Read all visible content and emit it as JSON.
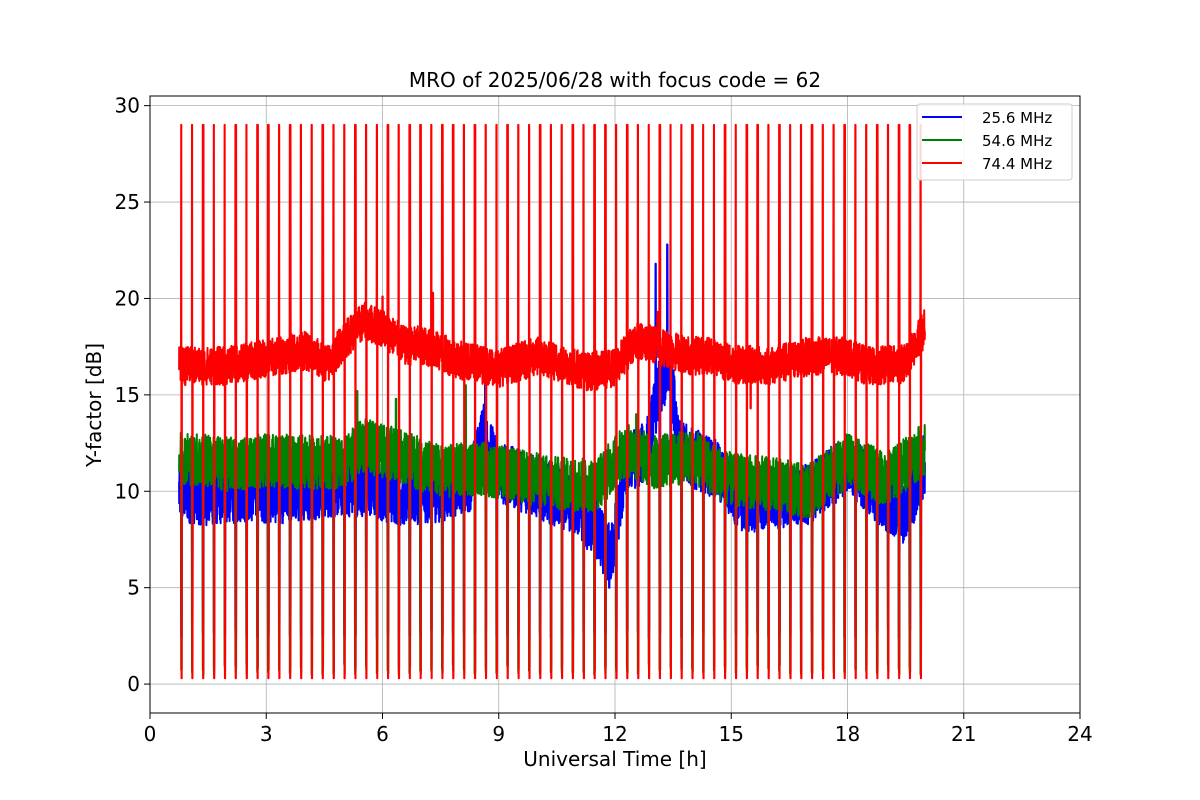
{
  "chart_data": {
    "type": "line",
    "title": "MRO of 2025/06/28 with focus code = 62",
    "xlabel": "Universal Time [h]",
    "ylabel": "Y-factor [dB]",
    "xlim": [
      0,
      24
    ],
    "ylim": [
      -1.5,
      30.5
    ],
    "xticks": [
      0,
      3,
      6,
      9,
      12,
      15,
      18,
      21,
      24
    ],
    "yticks": [
      0,
      5,
      10,
      15,
      20,
      25,
      30
    ],
    "grid": true,
    "legend_position": "top-right",
    "x_start": 0.75,
    "x_end": 20.0,
    "calibration_period_h": 0.2806,
    "series": [
      {
        "name": "25.6 MHz",
        "color": "#0000ff",
        "baseline": [
          [
            0.75,
            10.0
          ],
          [
            1.5,
            9.8
          ],
          [
            2.5,
            10.0
          ],
          [
            3.5,
            9.9
          ],
          [
            4.5,
            10.2
          ],
          [
            5.5,
            10.3
          ],
          [
            6.5,
            9.8
          ],
          [
            7.5,
            10.0
          ],
          [
            8.3,
            10.6
          ],
          [
            8.6,
            13.0
          ],
          [
            9.0,
            11.0
          ],
          [
            10.0,
            10.2
          ],
          [
            11.0,
            9.3
          ],
          [
            11.5,
            8.0
          ],
          [
            11.9,
            6.6
          ],
          [
            12.3,
            11.5
          ],
          [
            12.8,
            12.0
          ],
          [
            13.1,
            15.0
          ],
          [
            13.4,
            16.5
          ],
          [
            13.7,
            12.0
          ],
          [
            14.5,
            11.3
          ],
          [
            15.3,
            9.4
          ],
          [
            16.3,
            9.7
          ],
          [
            17.0,
            9.8
          ],
          [
            18.0,
            11.5
          ],
          [
            19.0,
            9.5
          ],
          [
            19.5,
            8.8
          ],
          [
            20.0,
            11.5
          ]
        ],
        "noise": 1.6,
        "spikes": [
          [
            8.65,
            16.0
          ],
          [
            13.05,
            21.8
          ],
          [
            13.35,
            22.8
          ],
          [
            11.85,
            5.0
          ]
        ],
        "cal_low": 2.3
      },
      {
        "name": "54.6 MHz",
        "color": "#008000",
        "baseline": [
          [
            0.75,
            11.8
          ],
          [
            2.0,
            11.4
          ],
          [
            3.0,
            11.6
          ],
          [
            4.0,
            11.5
          ],
          [
            5.0,
            11.5
          ],
          [
            5.5,
            12.4
          ],
          [
            6.5,
            11.8
          ],
          [
            7.5,
            11.0
          ],
          [
            8.5,
            11.2
          ],
          [
            9.5,
            10.8
          ],
          [
            10.5,
            10.4
          ],
          [
            11.5,
            10.3
          ],
          [
            12.3,
            12.2
          ],
          [
            13.0,
            11.5
          ],
          [
            14.0,
            11.8
          ],
          [
            15.0,
            10.6
          ],
          [
            16.0,
            10.4
          ],
          [
            17.0,
            10.0
          ],
          [
            18.0,
            11.6
          ],
          [
            19.0,
            10.6
          ],
          [
            19.6,
            11.6
          ],
          [
            20.0,
            12.2
          ]
        ],
        "noise": 1.4,
        "spikes": [
          [
            5.35,
            15.2
          ],
          [
            6.35,
            14.8
          ],
          [
            8.15,
            15.5
          ],
          [
            12.55,
            14.0
          ]
        ],
        "cal_low": 0.5
      },
      {
        "name": "74.4 MHz",
        "color": "#ff0000",
        "baseline": [
          [
            0.75,
            16.5
          ],
          [
            2.0,
            16.5
          ],
          [
            3.0,
            16.9
          ],
          [
            4.0,
            17.3
          ],
          [
            4.6,
            16.6
          ],
          [
            5.0,
            17.8
          ],
          [
            5.5,
            18.8
          ],
          [
            6.0,
            18.5
          ],
          [
            6.6,
            17.5
          ],
          [
            7.0,
            17.6
          ],
          [
            8.0,
            16.8
          ],
          [
            9.0,
            16.4
          ],
          [
            10.0,
            17.0
          ],
          [
            10.5,
            16.7
          ],
          [
            11.3,
            16.2
          ],
          [
            12.0,
            16.4
          ],
          [
            12.5,
            17.8
          ],
          [
            13.0,
            17.6
          ],
          [
            14.0,
            17.0
          ],
          [
            14.5,
            17.1
          ],
          [
            15.0,
            16.6
          ],
          [
            16.0,
            16.5
          ],
          [
            17.0,
            17.0
          ],
          [
            18.0,
            17.0
          ],
          [
            18.5,
            16.5
          ],
          [
            19.5,
            16.6
          ],
          [
            20.0,
            18.5
          ]
        ],
        "noise": 1.0,
        "spikes": [
          [
            5.3,
            21.7
          ],
          [
            6.0,
            20.1
          ],
          [
            13.1,
            19.3
          ],
          [
            15.5,
            14.3
          ],
          [
            7.3,
            20.3
          ]
        ],
        "cal_low": 0.3,
        "cal_high": 29.0
      }
    ]
  }
}
